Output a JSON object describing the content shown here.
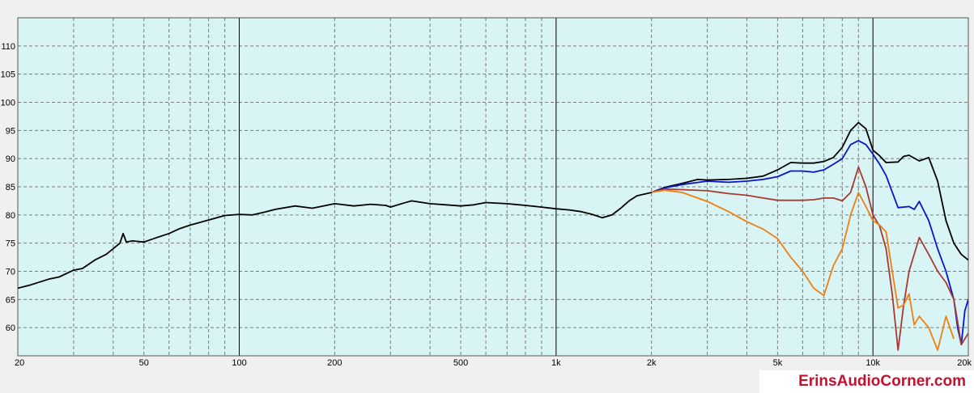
{
  "chart_data": {
    "type": "line",
    "x_scale": "log",
    "xlim": [
      20,
      20000
    ],
    "ylim": [
      55,
      115
    ],
    "grid": true,
    "x_ticks": [
      20,
      50,
      100,
      200,
      500,
      1000,
      2000,
      5000,
      10000,
      20000
    ],
    "x_tick_labels": [
      "20",
      "50",
      "100",
      "200",
      "500",
      "1k",
      "2k",
      "5k",
      "10k",
      "20k"
    ],
    "y_ticks": [
      60,
      65,
      70,
      75,
      80,
      85,
      90,
      95,
      100,
      105,
      110
    ],
    "y_tick_labels": [
      "60",
      "65",
      "70",
      "75",
      "80",
      "85",
      "90",
      "95",
      "100",
      "105",
      "110"
    ],
    "series": [
      {
        "color": "#000000",
        "points": [
          [
            20,
            67
          ],
          [
            22,
            67.6
          ],
          [
            25,
            68.6
          ],
          [
            27,
            69
          ],
          [
            30,
            70.2
          ],
          [
            32,
            70.5
          ],
          [
            35,
            72
          ],
          [
            38,
            73
          ],
          [
            40,
            74
          ],
          [
            42,
            75
          ],
          [
            43,
            76.7
          ],
          [
            44,
            75.2
          ],
          [
            46,
            75.4
          ],
          [
            50,
            75.2
          ],
          [
            55,
            76
          ],
          [
            60,
            76.7
          ],
          [
            65,
            77.6
          ],
          [
            70,
            78.2
          ],
          [
            80,
            79.1
          ],
          [
            90,
            79.9
          ],
          [
            100,
            80.1
          ],
          [
            110,
            80
          ],
          [
            120,
            80.5
          ],
          [
            130,
            81
          ],
          [
            150,
            81.6
          ],
          [
            170,
            81.2
          ],
          [
            200,
            82
          ],
          [
            230,
            81.6
          ],
          [
            260,
            81.9
          ],
          [
            290,
            81.7
          ],
          [
            300,
            81.4
          ],
          [
            330,
            82.1
          ],
          [
            350,
            82.5
          ],
          [
            400,
            82
          ],
          [
            450,
            81.8
          ],
          [
            500,
            81.6
          ],
          [
            550,
            81.8
          ],
          [
            600,
            82.2
          ],
          [
            700,
            82
          ],
          [
            800,
            81.7
          ],
          [
            900,
            81.4
          ],
          [
            1000,
            81.1
          ],
          [
            1100,
            80.9
          ],
          [
            1200,
            80.6
          ],
          [
            1300,
            80.1
          ],
          [
            1400,
            79.5
          ],
          [
            1500,
            80
          ],
          [
            1600,
            81.2
          ],
          [
            1700,
            82.5
          ],
          [
            1800,
            83.4
          ],
          [
            2000,
            84
          ],
          [
            2200,
            84.9
          ],
          [
            2500,
            85.6
          ],
          [
            2800,
            86.3
          ],
          [
            3000,
            86.2
          ],
          [
            3500,
            86.3
          ],
          [
            4000,
            86.5
          ],
          [
            4500,
            86.9
          ],
          [
            5000,
            88
          ],
          [
            5500,
            89.3
          ],
          [
            6000,
            89.2
          ],
          [
            6500,
            89.2
          ],
          [
            7000,
            89.5
          ],
          [
            7500,
            90.2
          ],
          [
            8000,
            92
          ],
          [
            8500,
            95
          ],
          [
            9000,
            96.4
          ],
          [
            9500,
            95.3
          ],
          [
            10000,
            91.5
          ],
          [
            10500,
            90.5
          ],
          [
            11000,
            89.3
          ],
          [
            12000,
            89.4
          ],
          [
            12500,
            90.4
          ],
          [
            13000,
            90.6
          ],
          [
            14000,
            89.6
          ],
          [
            15000,
            90.2
          ],
          [
            16000,
            86
          ],
          [
            17000,
            79
          ],
          [
            18000,
            75
          ],
          [
            19000,
            73
          ],
          [
            20000,
            72
          ]
        ]
      },
      {
        "color": "#0a14cc",
        "points": [
          [
            2000,
            84
          ],
          [
            2200,
            84.8
          ],
          [
            2500,
            85.4
          ],
          [
            3000,
            86
          ],
          [
            3500,
            85.8
          ],
          [
            4000,
            86
          ],
          [
            4500,
            86.3
          ],
          [
            5000,
            86.8
          ],
          [
            5500,
            87.8
          ],
          [
            6000,
            87.8
          ],
          [
            6500,
            87.6
          ],
          [
            7000,
            88
          ],
          [
            7500,
            89
          ],
          [
            8000,
            90
          ],
          [
            8500,
            92.5
          ],
          [
            9000,
            93.2
          ],
          [
            9500,
            92.5
          ],
          [
            10000,
            90.8
          ],
          [
            10500,
            89
          ],
          [
            11000,
            87
          ],
          [
            12000,
            81.3
          ],
          [
            13000,
            81.5
          ],
          [
            13500,
            81
          ],
          [
            14000,
            82.4
          ],
          [
            15000,
            79
          ],
          [
            16000,
            74
          ],
          [
            17000,
            70
          ],
          [
            18000,
            65
          ],
          [
            18500,
            60
          ],
          [
            19000,
            57
          ],
          [
            19500,
            63
          ],
          [
            20000,
            65
          ]
        ]
      },
      {
        "color": "#a83a32",
        "points": [
          [
            2000,
            84
          ],
          [
            2200,
            84.6
          ],
          [
            2500,
            84.5
          ],
          [
            3000,
            84.3
          ],
          [
            3500,
            83.8
          ],
          [
            4000,
            83.5
          ],
          [
            4500,
            83
          ],
          [
            5000,
            82.6
          ],
          [
            6000,
            82.6
          ],
          [
            6500,
            82.7
          ],
          [
            7000,
            83
          ],
          [
            7500,
            83
          ],
          [
            8000,
            82.5
          ],
          [
            8500,
            84
          ],
          [
            9000,
            88.5
          ],
          [
            9500,
            85
          ],
          [
            10000,
            80
          ],
          [
            10500,
            78
          ],
          [
            11000,
            74
          ],
          [
            11500,
            66
          ],
          [
            12000,
            56
          ],
          [
            12500,
            64
          ],
          [
            13000,
            70
          ],
          [
            14000,
            76
          ],
          [
            15000,
            73
          ],
          [
            16000,
            70
          ],
          [
            17000,
            68
          ],
          [
            18000,
            65
          ],
          [
            18500,
            61
          ],
          [
            19000,
            57
          ],
          [
            20000,
            59
          ]
        ]
      },
      {
        "color": "#f07f10",
        "points": [
          [
            2000,
            84
          ],
          [
            2200,
            84.4
          ],
          [
            2500,
            84
          ],
          [
            3000,
            82.4
          ],
          [
            3500,
            80.6
          ],
          [
            4000,
            78.8
          ],
          [
            4500,
            77.5
          ],
          [
            5000,
            75.8
          ],
          [
            5500,
            72.5
          ],
          [
            6000,
            70
          ],
          [
            6500,
            67
          ],
          [
            7000,
            65.7
          ],
          [
            7500,
            71
          ],
          [
            8000,
            74
          ],
          [
            8500,
            80
          ],
          [
            9000,
            84
          ],
          [
            9500,
            81.5
          ],
          [
            10000,
            79
          ],
          [
            10500,
            78.2
          ],
          [
            11000,
            77
          ],
          [
            11500,
            70
          ],
          [
            12000,
            63.5
          ],
          [
            12500,
            64
          ],
          [
            13000,
            66
          ],
          [
            13500,
            60.5
          ],
          [
            14000,
            62
          ],
          [
            15000,
            60
          ],
          [
            16000,
            56
          ],
          [
            17000,
            62
          ],
          [
            18000,
            58
          ]
        ]
      }
    ]
  },
  "watermark": "ErinsAudioCorner.com"
}
